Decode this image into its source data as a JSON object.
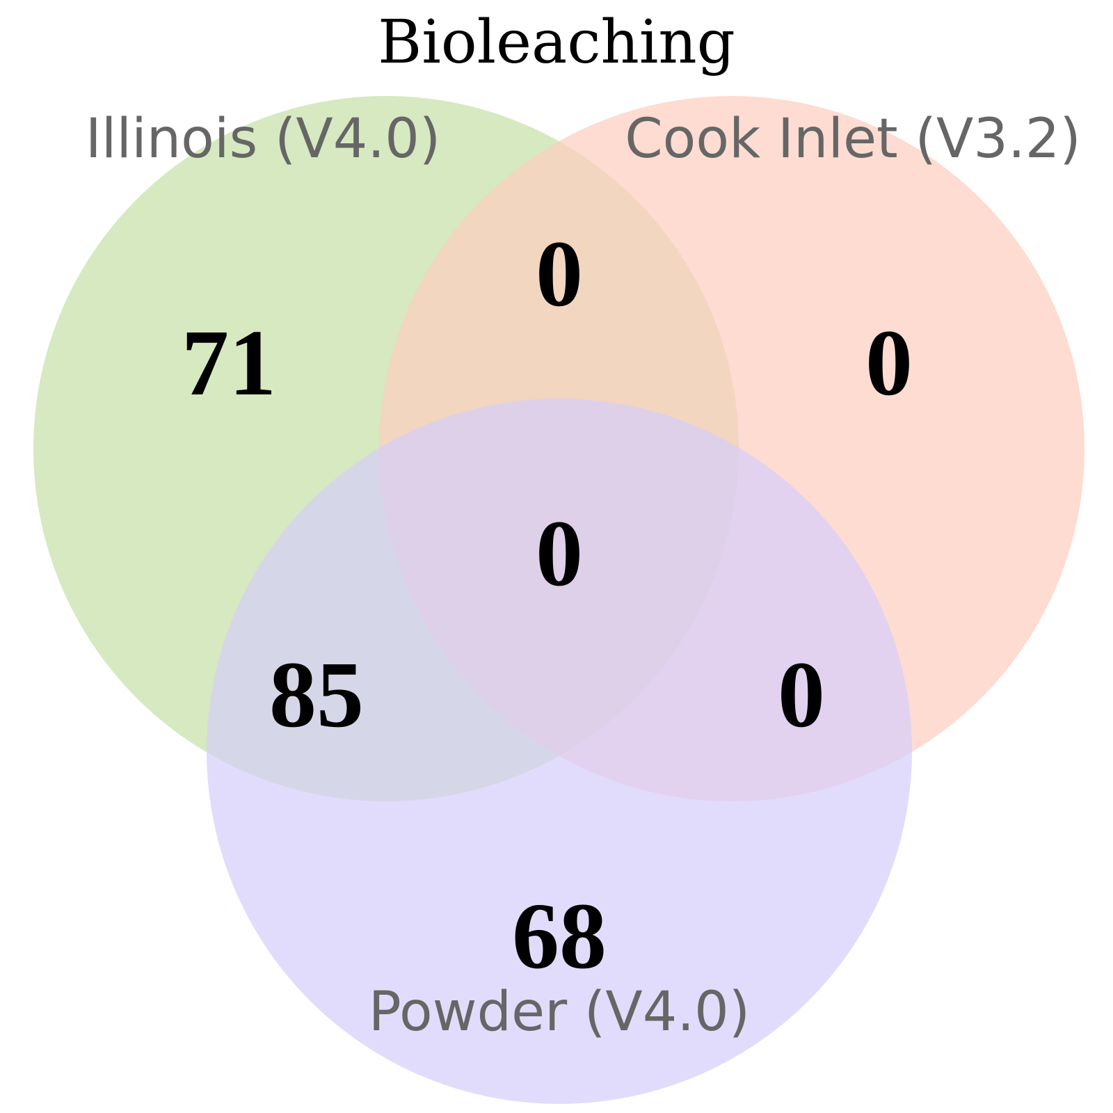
{
  "title": "Bioleaching",
  "sets": [
    {
      "key": "A",
      "label": "Illinois (V4.0)",
      "color": "#c5e0a5"
    },
    {
      "key": "B",
      "label": "Cook Inlet (V3.2)",
      "color": "#fdcdbf"
    },
    {
      "key": "C",
      "label": "Powder (V4.0)",
      "color": "#d5cdfb"
    }
  ],
  "regions": {
    "A_only": "71",
    "B_only": "0",
    "C_only": "68",
    "A_and_B": "0",
    "A_and_C": "85",
    "B_and_C": "0",
    "A_B_C": "0"
  }
}
